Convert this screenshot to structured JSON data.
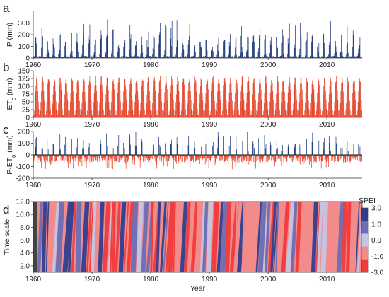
{
  "chart_data": [
    {
      "panel_label": "a",
      "type": "bar",
      "x_range": [
        1960,
        2016
      ],
      "ylabel": "P (mm)",
      "ylim": [
        0,
        400
      ],
      "yticks": [
        0,
        100,
        200,
        300
      ],
      "xticks": [
        1960,
        1970,
        1980,
        1990,
        2000,
        2010
      ],
      "color": "#1f3b7a",
      "series_type": "monthly precipitation",
      "typical_annual_peak": [
        150,
        350
      ]
    },
    {
      "panel_label": "b",
      "type": "bar",
      "x_range": [
        1960,
        2016
      ],
      "ylabel": "ET",
      "ylabel_sub": "0",
      "ylabel_unit": " (mm)",
      "ylim": [
        0,
        150
      ],
      "yticks": [
        0,
        25,
        50,
        75,
        100,
        125,
        150
      ],
      "xticks": [
        1960,
        1970,
        1980,
        1990,
        2000,
        2010
      ],
      "color": "#e5462d",
      "typical_annual_peak": [
        120,
        138
      ]
    },
    {
      "panel_label": "c",
      "type": "bar",
      "x_range": [
        1960,
        2016
      ],
      "ylabel": "P-ET",
      "ylabel_sub": "0",
      "ylabel_unit": " (mm)",
      "ylim": [
        -200,
        200
      ],
      "yticks": [
        -200,
        -100,
        0,
        100,
        200
      ],
      "xticks": [
        1960,
        1970,
        1980,
        1990,
        2000,
        2010
      ],
      "positive_color": "#1f3b7a",
      "negative_color": "#e5462d"
    },
    {
      "panel_label": "d",
      "type": "heatmap",
      "x_range": [
        1960,
        2016
      ],
      "xlabel": "Year",
      "ylabel": "Time scale",
      "ylim": [
        1,
        12
      ],
      "yticks": [
        "2.0",
        "4.0",
        "6.0",
        "8.0",
        "10.0",
        "12.0"
      ],
      "xticks": [
        1960,
        1970,
        1980,
        1990,
        2000,
        2010
      ],
      "colorbar": {
        "title": "SPEI",
        "range": [
          -3,
          3
        ],
        "ticks": [
          "3.0",
          "1.0",
          "0.0",
          "-1.0",
          "-3.0"
        ],
        "colors": [
          "#f03b3b",
          "#f28b8b",
          "#c5c5e3",
          "#6a6fb5",
          "#2e3f8f"
        ]
      }
    }
  ]
}
